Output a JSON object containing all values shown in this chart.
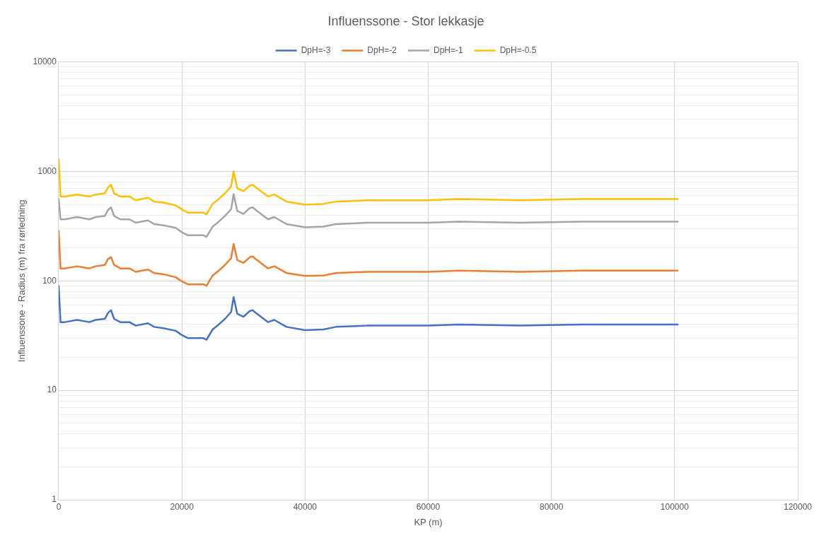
{
  "chart_data": {
    "type": "line",
    "title": "Influenssone - Stor lekkasje",
    "xlabel": "KP (m)",
    "ylabel": "Influenssone - Radius (m) fra rørledning",
    "x": [
      0,
      300,
      1000,
      3000,
      5000,
      6000,
      7500,
      8000,
      8500,
      9000,
      10000,
      11500,
      12500,
      14500,
      15500,
      17000,
      19000,
      20000,
      21000,
      23500,
      24000,
      25000,
      26000,
      27000,
      28000,
      28400,
      29000,
      30000,
      31000,
      31500,
      32000,
      34000,
      35000,
      37000,
      40000,
      43000,
      45000,
      50000,
      60000,
      65000,
      75000,
      85000,
      100500
    ],
    "series": [
      {
        "name": "DpH=-3",
        "color": "#4472c4",
        "values": [
          90,
          42,
          42,
          44,
          42,
          44,
          45,
          51,
          54,
          45,
          42,
          42,
          39,
          41,
          38,
          37,
          35,
          32,
          30,
          30,
          29,
          36,
          40,
          45,
          52,
          71,
          50,
          47,
          53,
          54,
          51,
          42,
          44,
          38,
          35.5,
          36,
          38,
          39,
          39,
          40,
          39,
          40,
          40
        ]
      },
      {
        "name": "DpH=-2",
        "color": "#ed7d31",
        "values": [
          285,
          130,
          130,
          136,
          130,
          136,
          140,
          158,
          165,
          140,
          130,
          130,
          121,
          127,
          118,
          115,
          108,
          99,
          93,
          93,
          90,
          112,
          124,
          140,
          161,
          218,
          155,
          146,
          164,
          167,
          158,
          130,
          136,
          118,
          111,
          112,
          118,
          121,
          121,
          124,
          121,
          124,
          124
        ]
      },
      {
        "name": "DpH=-1",
        "color": "#a5a5a5",
        "values": [
          560,
          365,
          365,
          383,
          365,
          383,
          392,
          444,
          470,
          392,
          365,
          365,
          340,
          357,
          330,
          322,
          305,
          278,
          261,
          261,
          252,
          313,
          348,
          392,
          452,
          618,
          435,
          409,
          461,
          470,
          444,
          365,
          383,
          330,
          309,
          313,
          330,
          340,
          340,
          348,
          340,
          348,
          348
        ]
      },
      {
        "name": "DpH=-0.5",
        "color": "#ffc000",
        "values": [
          1300,
          590,
          590,
          615,
          590,
          615,
          630,
          715,
          755,
          630,
          590,
          590,
          545,
          575,
          530,
          520,
          490,
          450,
          420,
          420,
          405,
          505,
          560,
          630,
          730,
          1000,
          700,
          660,
          740,
          755,
          715,
          590,
          615,
          530,
          497,
          505,
          530,
          545,
          545,
          560,
          545,
          560,
          560
        ]
      }
    ],
    "xlim": [
      0,
      120000
    ],
    "xticks": [
      0,
      20000,
      40000,
      60000,
      80000,
      100000,
      120000
    ],
    "ylim": [
      1,
      10000
    ],
    "yticks": [
      1,
      {
        "value": 2,
        "label": null
      },
      {
        "value": 3,
        "label": null
      },
      {
        "value": 4,
        "label": null
      },
      {
        "value": 5,
        "label": null
      },
      {
        "value": 6,
        "label": null
      },
      {
        "value": 7,
        "label": null
      },
      {
        "value": 8,
        "label": null
      },
      {
        "value": 9,
        "label": null
      },
      10,
      {
        "value": 20,
        "label": null
      },
      {
        "value": 30,
        "label": null
      },
      {
        "value": 40,
        "label": null
      },
      {
        "value": 50,
        "label": null
      },
      {
        "value": 60,
        "label": null
      },
      {
        "value": 70,
        "label": null
      },
      {
        "value": 80,
        "label": null
      },
      {
        "value": 90,
        "label": null
      },
      100,
      {
        "value": 200,
        "label": null
      },
      {
        "value": 300,
        "label": null
      },
      {
        "value": 400,
        "label": null
      },
      {
        "value": 500,
        "label": null
      },
      {
        "value": 600,
        "label": null
      },
      {
        "value": 700,
        "label": null
      },
      {
        "value": 800,
        "label": null
      },
      {
        "value": 900,
        "label": null
      },
      1000,
      {
        "value": 2000,
        "label": null
      },
      {
        "value": 3000,
        "label": null
      },
      {
        "value": 4000,
        "label": null
      },
      {
        "value": 5000,
        "label": null
      },
      {
        "value": 6000,
        "label": null
      },
      {
        "value": 7000,
        "label": null
      },
      {
        "value": 8000,
        "label": null
      },
      {
        "value": 9000,
        "label": null
      },
      10000
    ],
    "log": "y",
    "grid": true,
    "legend": "top",
    "marker": "none",
    "line_style": "solid"
  }
}
